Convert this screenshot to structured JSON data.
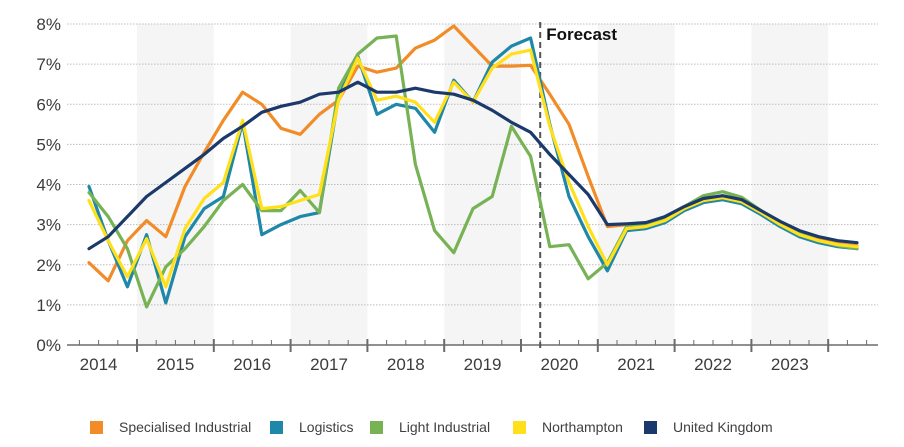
{
  "chart_data": {
    "type": "line",
    "title": "",
    "xlabel": "",
    "ylabel": "",
    "ylim": [
      0,
      8
    ],
    "yticks": [
      "0%",
      "1%",
      "2%",
      "3%",
      "4%",
      "5%",
      "6%",
      "7%",
      "8%"
    ],
    "ytick_values": [
      0,
      1,
      2,
      3,
      4,
      5,
      6,
      7,
      8
    ],
    "x_unit": "quarter",
    "x_start": "2014 Q1",
    "x_count": 41,
    "year_labels": [
      "2014",
      "2015",
      "2016",
      "2017",
      "2018",
      "2019",
      "2020",
      "2021",
      "2022",
      "2023"
    ],
    "shaded_years": [
      "2015",
      "2017",
      "2019",
      "2021",
      "2023"
    ],
    "grid": "horizontal-dotted",
    "annotation": {
      "label": "Forecast",
      "position_quarter_index": 23.5,
      "style": "dashed-vertical"
    },
    "legend_position": "bottom",
    "series": [
      {
        "name": "Specialised Industrial",
        "color": "#F28C28",
        "values": [
          2.05,
          1.6,
          2.6,
          3.1,
          2.7,
          3.95,
          4.8,
          5.6,
          6.3,
          6.0,
          5.4,
          5.25,
          5.75,
          6.1,
          6.95,
          6.8,
          6.9,
          7.4,
          7.6,
          7.95,
          7.45,
          6.95,
          6.95,
          6.97,
          6.25,
          5.5,
          4.2,
          2.95,
          3.0,
          3.0,
          3.15,
          3.42,
          3.63,
          3.7,
          3.6,
          3.32,
          3.03,
          2.8,
          2.63,
          2.52,
          2.47
        ]
      },
      {
        "name": "Logistics",
        "color": "#1F87A8",
        "values": [
          3.95,
          2.6,
          1.45,
          2.75,
          1.05,
          2.7,
          3.4,
          3.7,
          5.55,
          2.75,
          3.0,
          3.2,
          3.3,
          6.2,
          7.2,
          5.75,
          6.0,
          5.9,
          5.3,
          6.6,
          6.05,
          7.05,
          7.45,
          7.65,
          5.5,
          3.7,
          2.7,
          1.85,
          2.85,
          2.9,
          3.05,
          3.35,
          3.55,
          3.62,
          3.52,
          3.25,
          2.95,
          2.7,
          2.55,
          2.45,
          2.4
        ]
      },
      {
        "name": "Light Industrial",
        "color": "#77B255",
        "values": [
          3.8,
          3.2,
          2.4,
          0.95,
          1.95,
          2.4,
          2.95,
          3.6,
          4.0,
          3.35,
          3.35,
          3.85,
          3.3,
          6.4,
          7.25,
          7.65,
          7.7,
          4.5,
          2.85,
          2.3,
          3.4,
          3.7,
          5.45,
          4.7,
          2.45,
          2.5,
          1.65,
          2.05,
          2.95,
          3.0,
          3.15,
          3.45,
          3.72,
          3.82,
          3.68,
          3.35,
          3.05,
          2.78,
          2.6,
          2.48,
          2.4
        ]
      },
      {
        "name": "Northampton",
        "color": "#FFE01B",
        "values": [
          3.6,
          2.6,
          1.7,
          2.65,
          1.45,
          2.9,
          3.65,
          4.05,
          5.6,
          3.4,
          3.45,
          3.6,
          3.75,
          6.1,
          7.15,
          6.1,
          6.2,
          6.05,
          5.55,
          6.55,
          6.05,
          6.9,
          7.25,
          7.35,
          5.45,
          4.05,
          2.95,
          2.0,
          2.9,
          2.95,
          3.1,
          3.4,
          3.6,
          3.67,
          3.57,
          3.3,
          3.0,
          2.75,
          2.6,
          2.5,
          2.45
        ]
      },
      {
        "name": "United Kingdom",
        "color": "#1B3A6B",
        "values": [
          2.4,
          2.7,
          3.2,
          3.7,
          4.05,
          4.4,
          4.75,
          5.15,
          5.45,
          5.8,
          5.95,
          6.05,
          6.25,
          6.3,
          6.55,
          6.3,
          6.3,
          6.4,
          6.3,
          6.25,
          6.1,
          5.85,
          5.55,
          5.3,
          4.75,
          4.25,
          3.75,
          3.0,
          3.02,
          3.05,
          3.2,
          3.45,
          3.65,
          3.72,
          3.62,
          3.35,
          3.08,
          2.85,
          2.7,
          2.6,
          2.55
        ]
      }
    ]
  }
}
